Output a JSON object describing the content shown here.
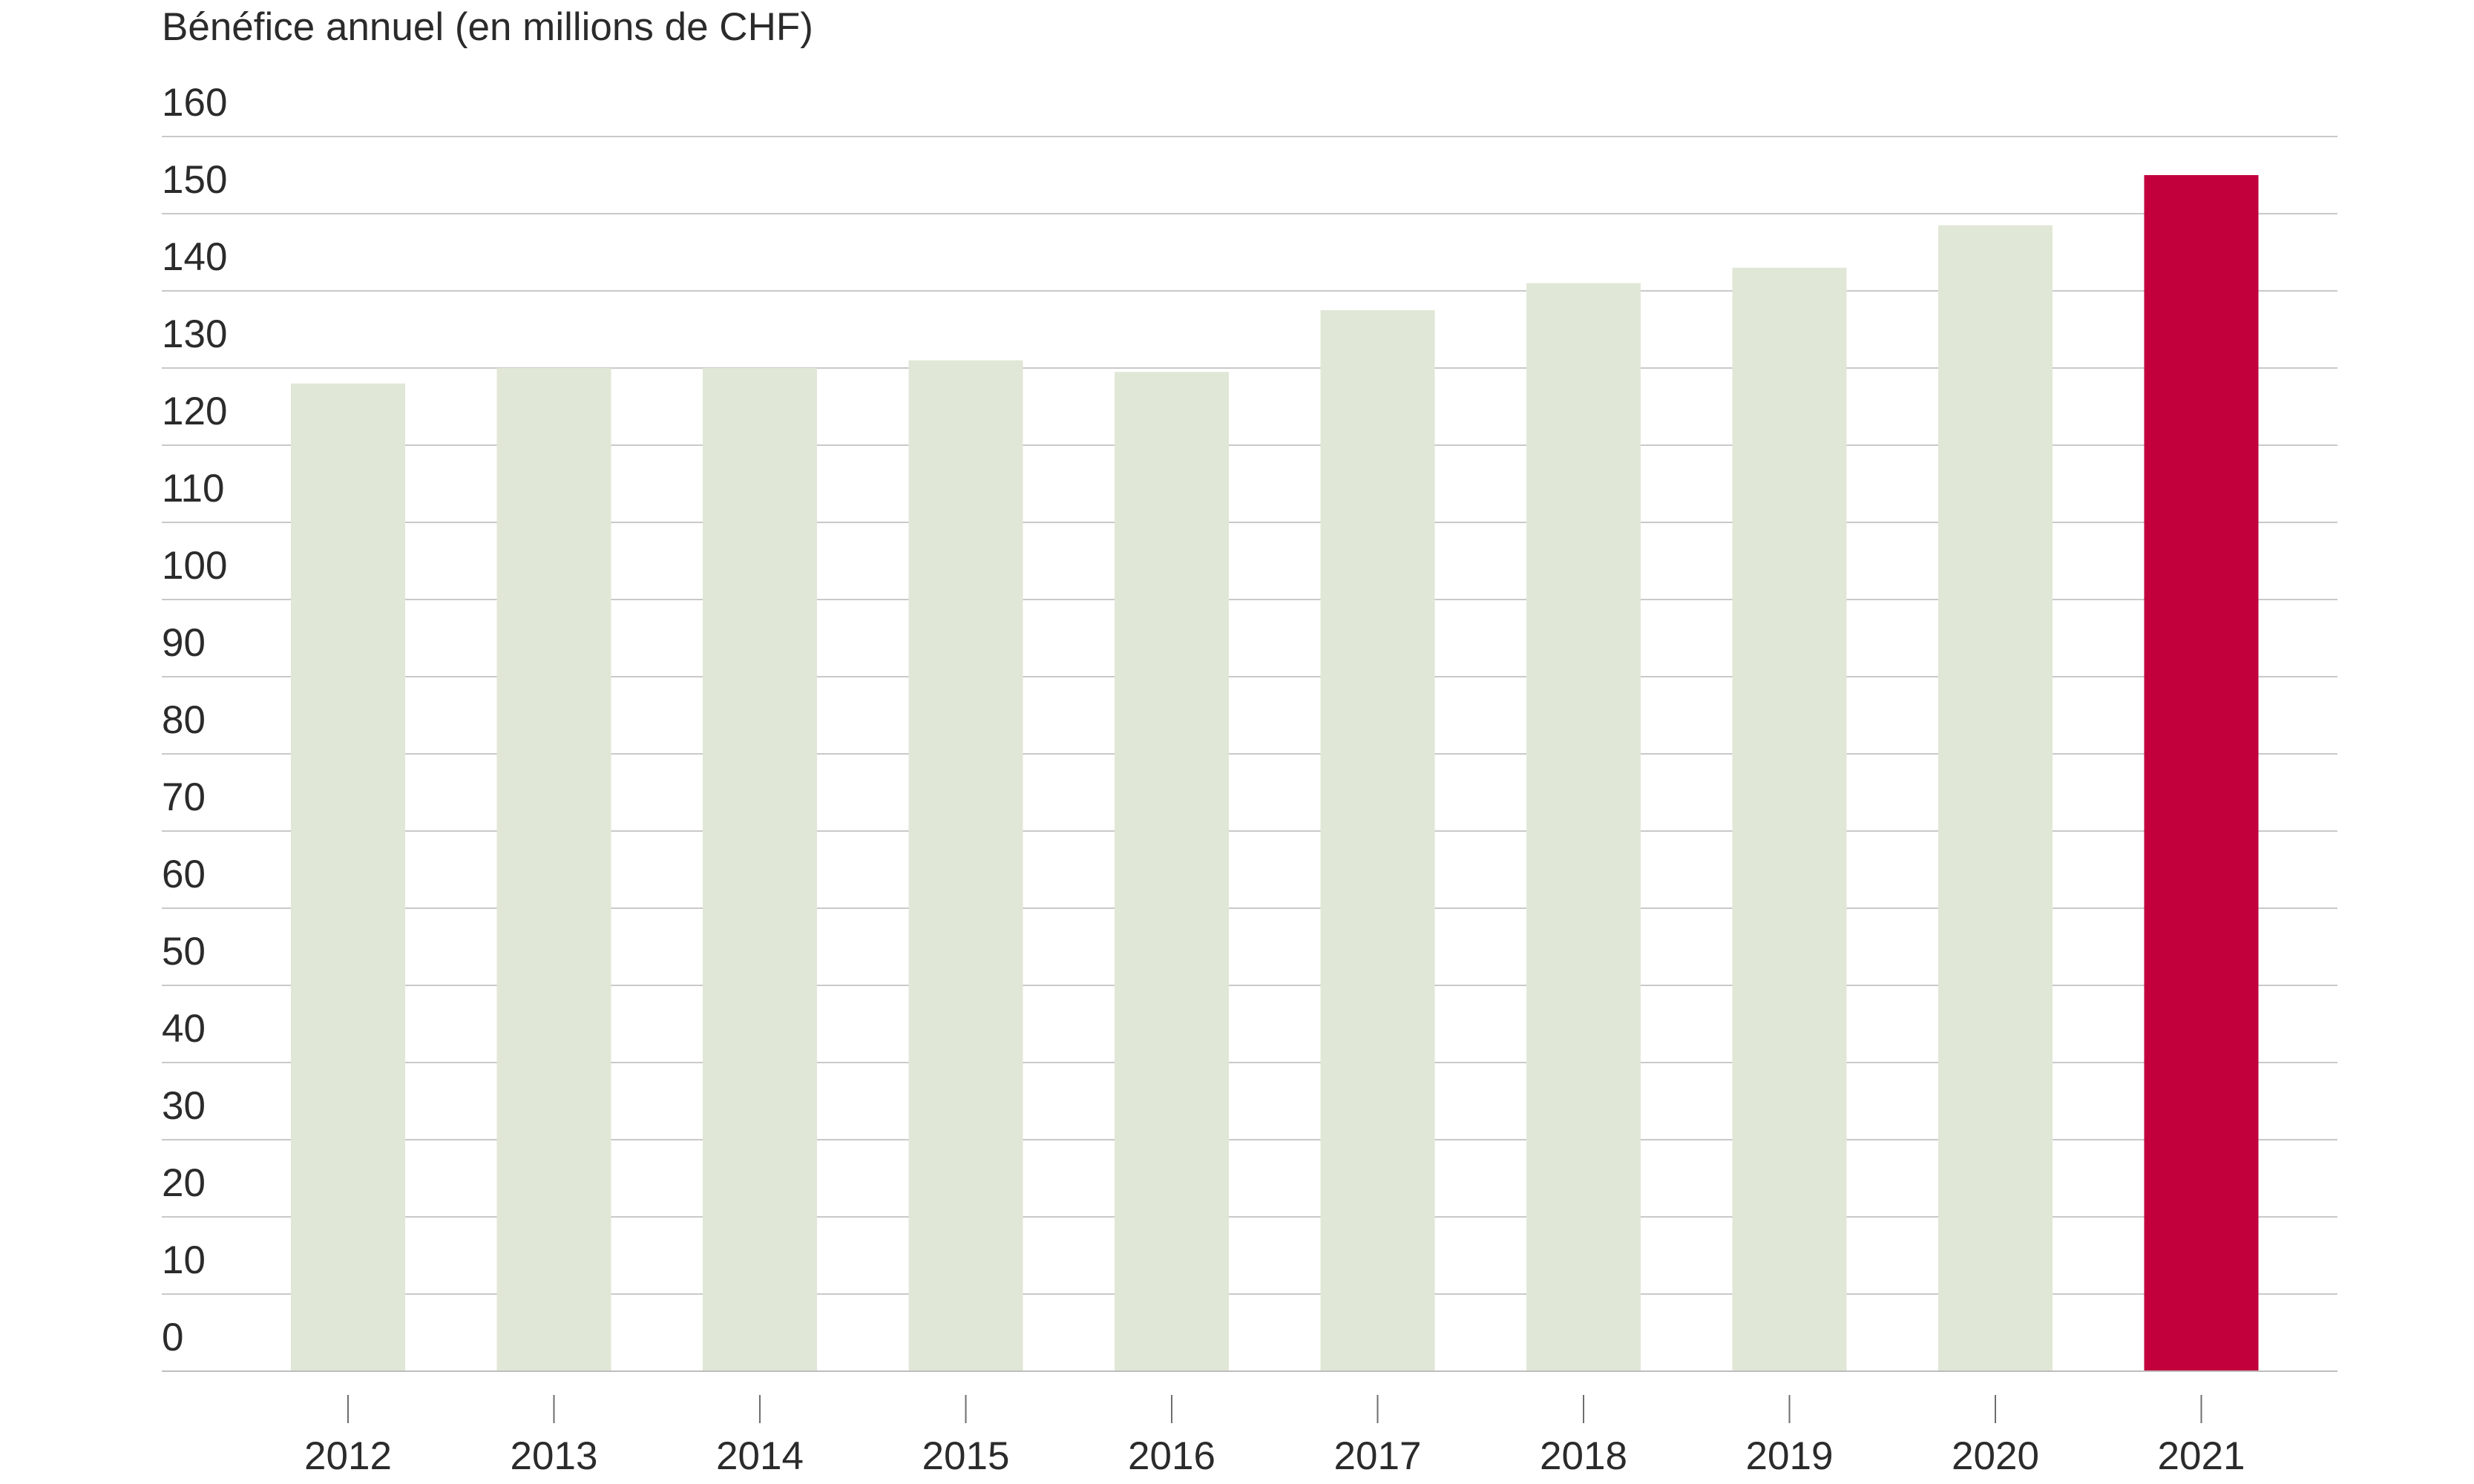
{
  "chart_data": {
    "type": "bar",
    "title": "",
    "ylabel": "Bénéfice annuel (en millions de CHF)",
    "xlabel": "",
    "categories": [
      "2012",
      "2013",
      "2014",
      "2015",
      "2016",
      "2017",
      "2018",
      "2019",
      "2020",
      "2021"
    ],
    "values": [
      128,
      130,
      130,
      131,
      129.5,
      137.5,
      141,
      143,
      148.5,
      155
    ],
    "ylim": [
      0,
      160
    ],
    "yticks": [
      0,
      10,
      20,
      30,
      40,
      50,
      60,
      70,
      80,
      90,
      100,
      110,
      120,
      130,
      140,
      150,
      160
    ],
    "grid": true,
    "legend": "none",
    "colors": {
      "default_bar": "#e1e7d6",
      "highlight_bar": "#c2003c",
      "highlight_category": "2021",
      "grid": "#c9c9c9",
      "text": "#2b2b2b"
    }
  }
}
